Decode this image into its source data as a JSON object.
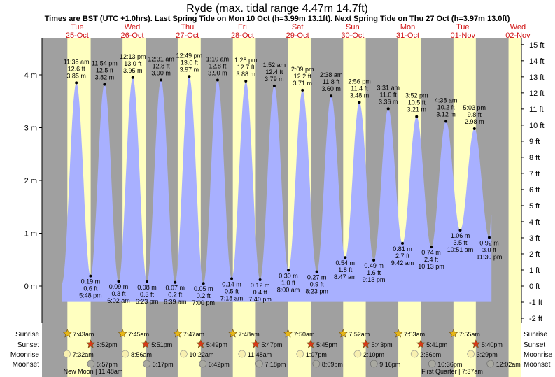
{
  "chart_data": {
    "type": "area",
    "title": "Ryde (max. tidal range 4.47m 14.7ft)",
    "subtitle": "Times are BST (UTC +1.0hrs). Last Spring Tide on Mon 10 Oct (h=3.99m 13.1ft). Next Spring Tide on Thu 27 Oct (h=3.97m 13.0ft)",
    "y_left_unit": "m",
    "y_left_ticks": [
      "0 m",
      "1 m",
      "2 m",
      "3 m",
      "4 m"
    ],
    "y_right_ticks": [
      "-2 ft",
      "-1 ft",
      "0 ft",
      "1 ft",
      "2 ft",
      "3 ft",
      "4 ft",
      "5 ft",
      "6 ft",
      "7 ft",
      "8 ft",
      "9 ft",
      "10 ft",
      "11 ft",
      "12 ft",
      "13 ft",
      "14 ft",
      "15 ft"
    ],
    "ylim_m": [
      -0.6,
      4.6
    ],
    "days": [
      {
        "name": "Tue",
        "date": "25-Oct"
      },
      {
        "name": "Wed",
        "date": "26-Oct"
      },
      {
        "name": "Thu",
        "date": "27-Oct"
      },
      {
        "name": "Fri",
        "date": "28-Oct"
      },
      {
        "name": "Sat",
        "date": "29-Oct"
      },
      {
        "name": "Sun",
        "date": "30-Oct"
      },
      {
        "name": "Mon",
        "date": "31-Oct"
      },
      {
        "name": "Tue",
        "date": "01-Nov"
      },
      {
        "name": "Wed",
        "date": "02-Nov"
      }
    ],
    "tides": [
      {
        "type": "high",
        "time": "11:38 am",
        "m": 3.85,
        "m_label": "3.85 m",
        "ft_label": "12.6 ft"
      },
      {
        "type": "low",
        "time": "5:48 pm",
        "m": 0.19,
        "m_label": "0.19 m",
        "ft_label": "0.6 ft"
      },
      {
        "type": "high",
        "time": "11:54 pm",
        "m": 3.82,
        "m_label": "3.82 m",
        "ft_label": "12.5 ft"
      },
      {
        "type": "low",
        "time": "6:02 am",
        "m": 0.09,
        "m_label": "0.09 m",
        "ft_label": "0.3 ft"
      },
      {
        "type": "high",
        "time": "12:13 pm",
        "m": 3.95,
        "m_label": "3.95 m",
        "ft_label": "13.0 ft"
      },
      {
        "type": "low",
        "time": "6:23 pm",
        "m": 0.08,
        "m_label": "0.08 m",
        "ft_label": "0.3 ft"
      },
      {
        "type": "high",
        "time": "12:31 am",
        "m": 3.9,
        "m_label": "3.90 m",
        "ft_label": "12.8 ft"
      },
      {
        "type": "low",
        "time": "6:39 am",
        "m": 0.07,
        "m_label": "0.07 m",
        "ft_label": "0.2 ft"
      },
      {
        "type": "high",
        "time": "12:49 pm",
        "m": 3.97,
        "m_label": "3.97 m",
        "ft_label": "13.0 ft"
      },
      {
        "type": "low",
        "time": "7:00 pm",
        "m": 0.05,
        "m_label": "0.05 m",
        "ft_label": "0.2 ft"
      },
      {
        "type": "high",
        "time": "1:10 am",
        "m": 3.9,
        "m_label": "3.90 m",
        "ft_label": "12.8 ft"
      },
      {
        "type": "low",
        "time": "7:18 am",
        "m": 0.14,
        "m_label": "0.14 m",
        "ft_label": "0.5 ft"
      },
      {
        "type": "high",
        "time": "1:28 pm",
        "m": 3.88,
        "m_label": "3.88 m",
        "ft_label": "12.7 ft"
      },
      {
        "type": "low",
        "time": "7:40 pm",
        "m": 0.12,
        "m_label": "0.12 m",
        "ft_label": "0.4 ft"
      },
      {
        "type": "high",
        "time": "1:52 am",
        "m": 3.79,
        "m_label": "3.79 m",
        "ft_label": "12.4 ft"
      },
      {
        "type": "low",
        "time": "8:00 am",
        "m": 0.3,
        "m_label": "0.30 m",
        "ft_label": "1.0 ft"
      },
      {
        "type": "high",
        "time": "2:09 pm",
        "m": 3.71,
        "m_label": "3.71 m",
        "ft_label": "12.2 ft"
      },
      {
        "type": "low",
        "time": "8:23 pm",
        "m": 0.27,
        "m_label": "0.27 m",
        "ft_label": "0.9 ft"
      },
      {
        "type": "high",
        "time": "2:38 am",
        "m": 3.6,
        "m_label": "3.60 m",
        "ft_label": "11.8 ft"
      },
      {
        "type": "low",
        "time": "8:47 am",
        "m": 0.54,
        "m_label": "0.54 m",
        "ft_label": "1.8 ft"
      },
      {
        "type": "high",
        "time": "2:56 pm",
        "m": 3.48,
        "m_label": "3.48 m",
        "ft_label": "11.4 ft"
      },
      {
        "type": "low",
        "time": "9:13 pm",
        "m": 0.49,
        "m_label": "0.49 m",
        "ft_label": "1.6 ft"
      },
      {
        "type": "high",
        "time": "3:31 am",
        "m": 3.36,
        "m_label": "3.36 m",
        "ft_label": "11.0 ft"
      },
      {
        "type": "low",
        "time": "9:42 am",
        "m": 0.81,
        "m_label": "0.81 m",
        "ft_label": "2.7 ft"
      },
      {
        "type": "high",
        "time": "3:52 pm",
        "m": 3.21,
        "m_label": "3.21 m",
        "ft_label": "10.5 ft"
      },
      {
        "type": "low",
        "time": "10:13 pm",
        "m": 0.74,
        "m_label": "0.74 m",
        "ft_label": "2.4 ft"
      },
      {
        "type": "high",
        "time": "4:38 am",
        "m": 3.12,
        "m_label": "3.12 m",
        "ft_label": "10.2 ft"
      },
      {
        "type": "low",
        "time": "10:51 am",
        "m": 1.06,
        "m_label": "1.06 m",
        "ft_label": "3.5 ft"
      },
      {
        "type": "high",
        "time": "5:03 pm",
        "m": 2.98,
        "m_label": "2.98 m",
        "ft_label": "9.8 ft"
      },
      {
        "type": "low",
        "time": "11:30 pm",
        "m": 0.92,
        "m_label": "0.92 m",
        "ft_label": "3.0 ft"
      }
    ],
    "rows": {
      "labels": [
        "Sunrise",
        "Sunset",
        "Moonrise",
        "Moonset"
      ],
      "sunrise": [
        "7:43am",
        "7:45am",
        "7:47am",
        "7:48am",
        "7:50am",
        "7:52am",
        "7:53am",
        "7:55am"
      ],
      "sunset": [
        "5:52pm",
        "5:51pm",
        "5:49pm",
        "5:47pm",
        "5:45pm",
        "5:43pm",
        "5:41pm",
        "5:40pm"
      ],
      "moonrise": [
        "7:32am",
        "8:56am",
        "10:22am",
        "11:48am",
        "1:07pm",
        "2:10pm",
        "2:56pm",
        "3:29pm"
      ],
      "moonset": [
        "5:57pm",
        "6:17pm",
        "6:42pm",
        "7:18pm",
        "8:09pm",
        "9:16pm",
        "10:36pm",
        "12:02am"
      ]
    },
    "phases": [
      "New Moon | 11:48am",
      "First Quarter | 7:37am"
    ],
    "colors": {
      "tide_fill": "#a8b0ff",
      "night": "#a0a0a0",
      "day": "#ffffc0",
      "day_names": "#d01010",
      "sun_star": "#e8b818",
      "sunset_star": "#d83818",
      "moon": "#f8f0b0",
      "moonset": "#a8a8a0"
    }
  }
}
